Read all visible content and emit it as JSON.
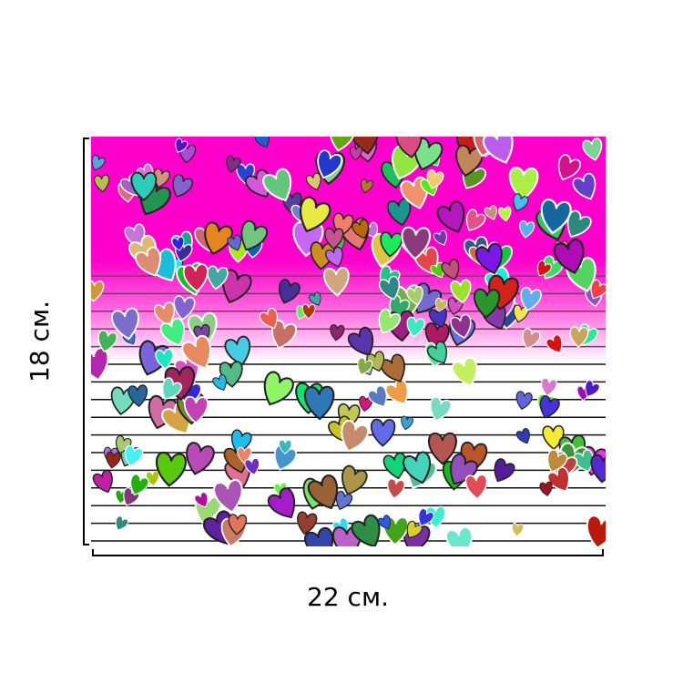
{
  "dimensions": {
    "height_label": "18 см.",
    "width_label": "22 см."
  }
}
